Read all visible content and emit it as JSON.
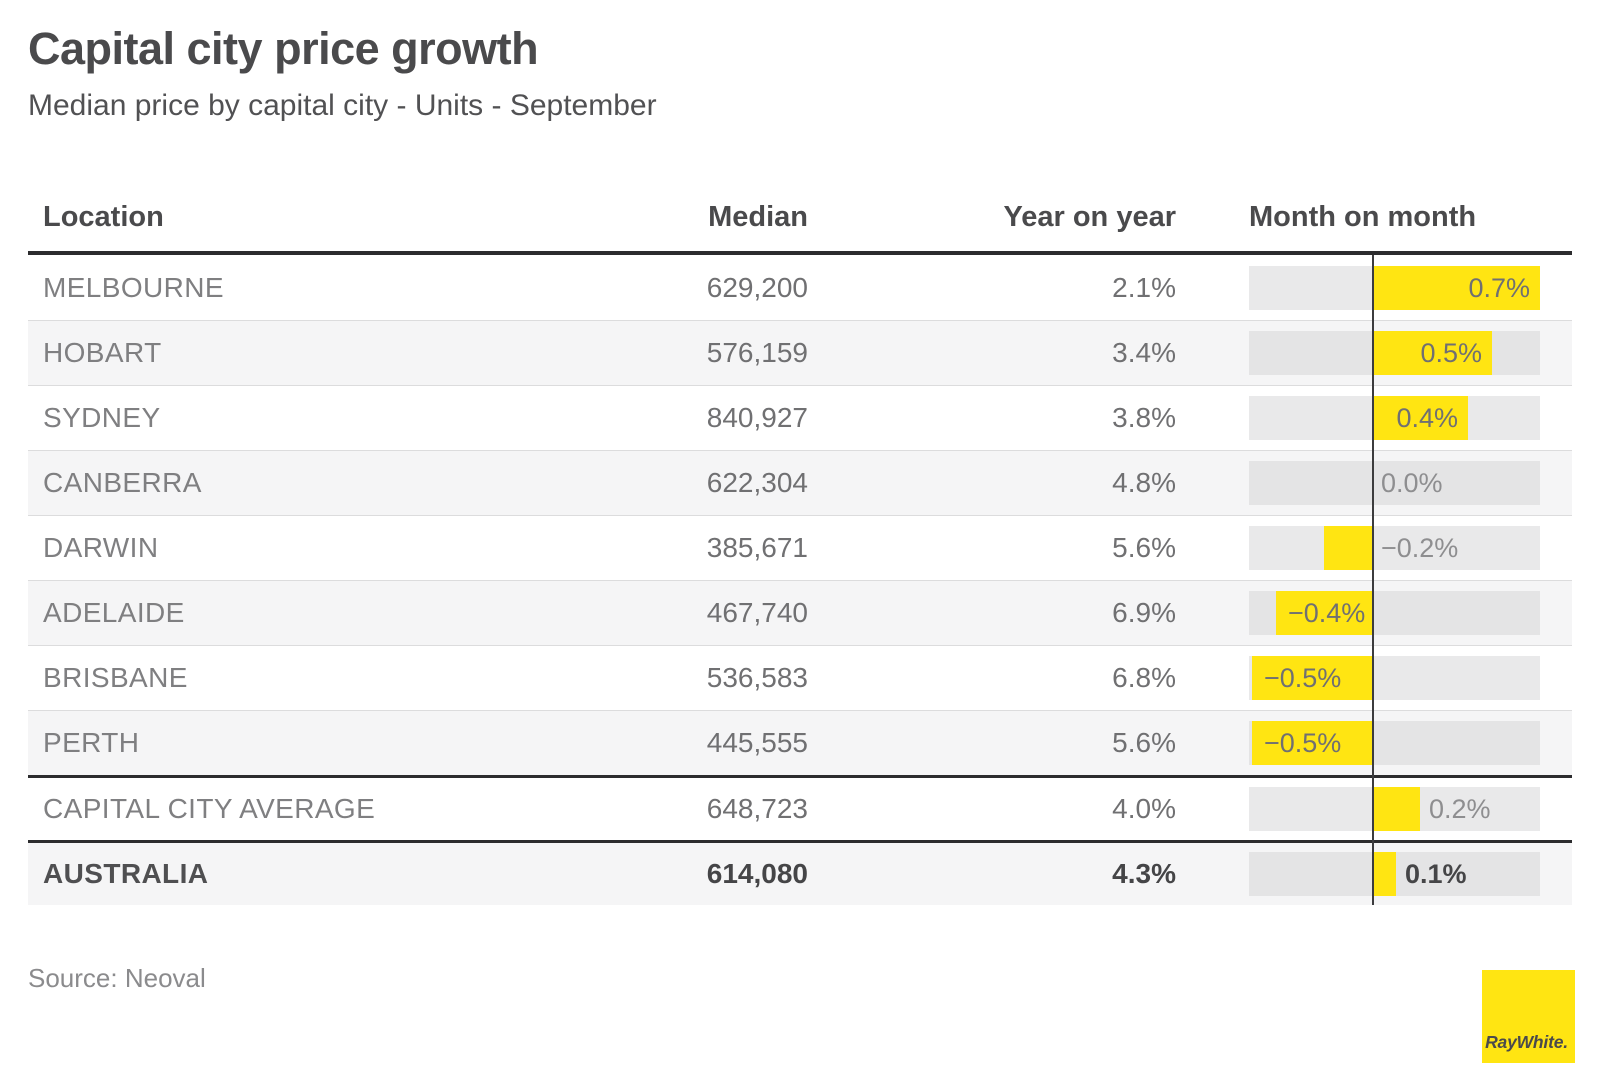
{
  "page": {
    "title": "Capital city price growth",
    "subtitle": "Median price by capital city - Units - September",
    "source": "Source: Neoval",
    "logo_text": "RayWhite."
  },
  "colors": {
    "accent_yellow": "#ffe512",
    "bar_track_gray": "#e9e9ea",
    "row_alt_gray": "#f5f5f6",
    "strong_rule": "#2c2c2e",
    "text_dark": "#4a4a4c",
    "text_mid": "#707072",
    "text_light": "#8e8e90"
  },
  "chart_data": {
    "type": "bar",
    "orientation": "horizontal",
    "title": "Capital city price growth",
    "subtitle": "Median price by capital city - Units - September",
    "columns": [
      "Location",
      "Median",
      "Year on year",
      "Month on month"
    ],
    "value_axis": {
      "unit": "%",
      "min": -0.51,
      "max": 0.7,
      "zero_line": true
    },
    "legend": "none",
    "rows": [
      {
        "location": "MELBOURNE",
        "median": "629,200",
        "year_on_year": "2.1%",
        "month_on_month_pct": 0.7
      },
      {
        "location": "HOBART",
        "median": "576,159",
        "year_on_year": "3.4%",
        "month_on_month_pct": 0.5
      },
      {
        "location": "SYDNEY",
        "median": "840,927",
        "year_on_year": "3.8%",
        "month_on_month_pct": 0.4
      },
      {
        "location": "CANBERRA",
        "median": "622,304",
        "year_on_year": "4.8%",
        "month_on_month_pct": 0.0
      },
      {
        "location": "DARWIN",
        "median": "385,671",
        "year_on_year": "5.6%",
        "month_on_month_pct": -0.2
      },
      {
        "location": "ADELAIDE",
        "median": "467,740",
        "year_on_year": "6.9%",
        "month_on_month_pct": -0.4
      },
      {
        "location": "BRISBANE",
        "median": "536,583",
        "year_on_year": "6.8%",
        "month_on_month_pct": -0.5
      },
      {
        "location": "PERTH",
        "median": "445,555",
        "year_on_year": "5.6%",
        "month_on_month_pct": -0.5
      },
      {
        "location": "CAPITAL CITY AVERAGE",
        "median": "648,723",
        "year_on_year": "4.0%",
        "month_on_month_pct": 0.2,
        "rule_above": true
      },
      {
        "location": "AUSTRALIA",
        "median": "614,080",
        "year_on_year": "4.3%",
        "month_on_month_pct": 0.1,
        "rule_above": true,
        "bold": true
      }
    ]
  }
}
